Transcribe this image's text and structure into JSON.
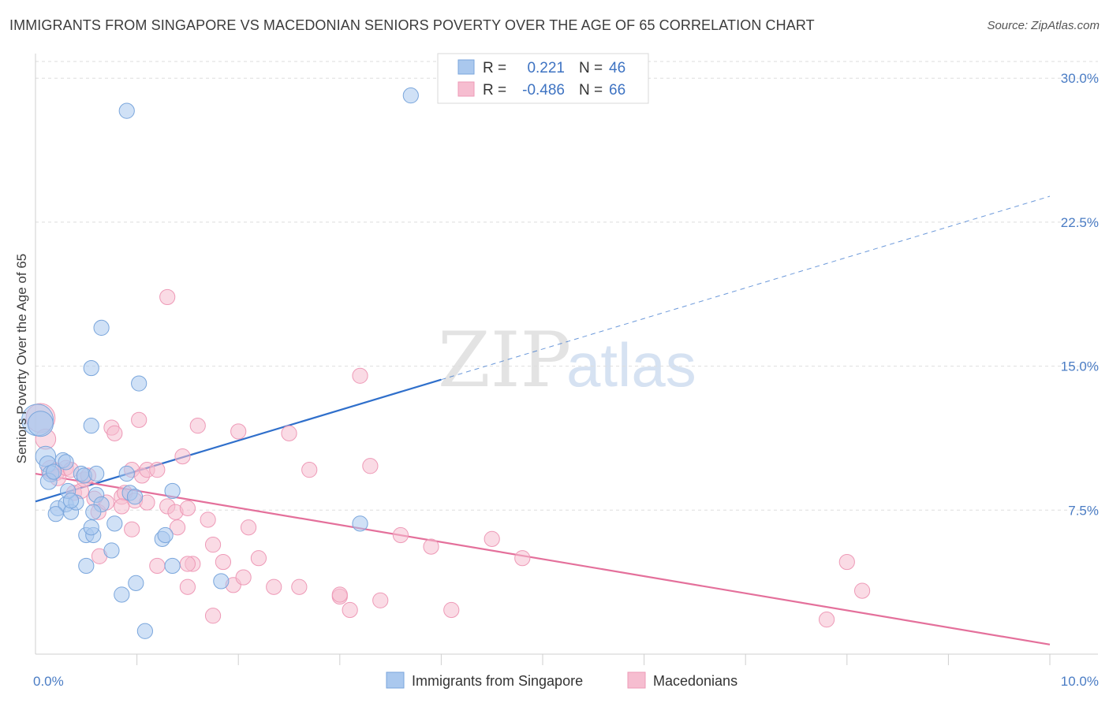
{
  "title": "IMMIGRANTS FROM SINGAPORE VS MACEDONIAN SENIORS POVERTY OVER THE AGE OF 65 CORRELATION CHART",
  "source": "Source: ZipAtlas.com",
  "watermark": {
    "zip": "ZIP",
    "atlas": "atlas"
  },
  "colors": {
    "blue_fill": "#aac8ee",
    "blue_stroke": "#7aa6dc",
    "blue_line": "#2f6fcb",
    "pink_fill": "#f6bdd0",
    "pink_stroke": "#ee9ab7",
    "pink_line": "#e4709b",
    "tick": "#4a7cc4"
  },
  "legend": {
    "rows": [
      {
        "r_label": "R =",
        "r_value": "0.221",
        "n_label": "N =",
        "n_value": "46",
        "series": "blue"
      },
      {
        "r_label": "R =",
        "r_value": "-0.486",
        "n_label": "N =",
        "n_value": "66",
        "series": "pink"
      }
    ]
  },
  "chart_data": {
    "type": "scatter",
    "title": "IMMIGRANTS FROM SINGAPORE VS MACEDONIAN SENIORS POVERTY OVER THE AGE OF 65 CORRELATION CHART",
    "xlabel": "",
    "ylabel": "Seniors Poverty Over the Age of 65",
    "xlim": [
      0,
      10
    ],
    "ylim": [
      0,
      31.2
    ],
    "x_tick_labels": [
      {
        "value": 0,
        "label": "0.0%"
      },
      {
        "value": 10,
        "label": "10.0%"
      }
    ],
    "y_tick_labels": [
      {
        "value": 7.5,
        "label": "7.5%"
      },
      {
        "value": 15,
        "label": "15.0%"
      },
      {
        "value": 22.5,
        "label": "22.5%"
      },
      {
        "value": 30,
        "label": "30.0%"
      }
    ],
    "x_minor_ticks": [
      1,
      2,
      3,
      4,
      5,
      6,
      7,
      8,
      9
    ],
    "grid": true,
    "series": [
      {
        "name": "Immigrants from Singapore",
        "color": "blue",
        "r": 0.221,
        "n": 46,
        "trend": {
          "x0": 0.0,
          "y0": 7.95,
          "x1": 4.0,
          "y1": 14.3,
          "dash_to_x": 10.0,
          "dash_to_y": 23.85
        },
        "points": [
          [
            0.02,
            12.2,
            2.5
          ],
          [
            0.05,
            12.0,
            2.0
          ],
          [
            0.1,
            10.3,
            1.6
          ],
          [
            0.12,
            9.9,
            1.3
          ],
          [
            0.15,
            9.4,
            1.3
          ],
          [
            0.13,
            9.0,
            1.3
          ],
          [
            0.18,
            9.5,
            1.2
          ],
          [
            0.27,
            10.1,
            1.2
          ],
          [
            0.22,
            7.6,
            1.2
          ],
          [
            0.3,
            7.8,
            1.2
          ],
          [
            0.35,
            7.4,
            1.2
          ],
          [
            0.4,
            7.9,
            1.2
          ],
          [
            0.32,
            8.5,
            1.2
          ],
          [
            0.45,
            9.4,
            1.2
          ],
          [
            0.48,
            9.3,
            1.2
          ],
          [
            0.6,
            9.4,
            1.2
          ],
          [
            0.6,
            8.3,
            1.2
          ],
          [
            0.65,
            7.8,
            1.2
          ],
          [
            0.57,
            7.4,
            1.2
          ],
          [
            0.55,
            11.9,
            1.2
          ],
          [
            0.65,
            17.0,
            1.2
          ],
          [
            0.55,
            14.9,
            1.2
          ],
          [
            0.5,
            6.2,
            1.2
          ],
          [
            0.57,
            6.2,
            1.2
          ],
          [
            0.55,
            6.6,
            1.2
          ],
          [
            0.75,
            5.4,
            1.2
          ],
          [
            0.78,
            6.8,
            1.2
          ],
          [
            0.93,
            8.4,
            1.2
          ],
          [
            0.98,
            8.2,
            1.2
          ],
          [
            0.9,
            9.4,
            1.2
          ],
          [
            1.02,
            14.1,
            1.2
          ],
          [
            0.5,
            4.6,
            1.2
          ],
          [
            0.85,
            3.1,
            1.2
          ],
          [
            0.99,
            3.7,
            1.2
          ],
          [
            1.08,
            1.2,
            1.2
          ],
          [
            1.25,
            6.0,
            1.2
          ],
          [
            1.28,
            6.2,
            1.2
          ],
          [
            1.35,
            4.6,
            1.2
          ],
          [
            1.35,
            8.5,
            1.2
          ],
          [
            1.83,
            3.8,
            1.2
          ],
          [
            3.2,
            6.8,
            1.2
          ],
          [
            0.9,
            28.3,
            1.2
          ],
          [
            3.7,
            29.1,
            1.2
          ],
          [
            0.35,
            8.0,
            1.2
          ],
          [
            0.2,
            7.3,
            1.2
          ],
          [
            0.3,
            10.0,
            1.2
          ]
        ]
      },
      {
        "name": "Macedonians",
        "color": "pink",
        "r": -0.486,
        "n": 66,
        "trend": {
          "x0": 0.0,
          "y0": 9.4,
          "x1": 10.0,
          "y1": 0.5
        },
        "points": [
          [
            0.05,
            12.3,
            2.3
          ],
          [
            0.1,
            11.2,
            1.6
          ],
          [
            0.15,
            9.6,
            1.5
          ],
          [
            0.2,
            9.5,
            1.4
          ],
          [
            0.22,
            9.2,
            1.3
          ],
          [
            0.3,
            9.7,
            1.2
          ],
          [
            0.35,
            9.6,
            1.2
          ],
          [
            0.38,
            8.4,
            1.2
          ],
          [
            0.45,
            8.5,
            1.2
          ],
          [
            0.48,
            9.1,
            1.2
          ],
          [
            0.52,
            9.3,
            1.2
          ],
          [
            0.58,
            8.1,
            1.2
          ],
          [
            0.62,
            7.4,
            1.2
          ],
          [
            0.7,
            7.9,
            1.2
          ],
          [
            0.75,
            11.8,
            1.2
          ],
          [
            0.78,
            11.5,
            1.2
          ],
          [
            0.85,
            8.2,
            1.2
          ],
          [
            0.88,
            8.4,
            1.2
          ],
          [
            0.95,
            9.6,
            1.2
          ],
          [
            0.98,
            8.0,
            1.2
          ],
          [
            1.05,
            9.3,
            1.2
          ],
          [
            1.02,
            12.2,
            1.2
          ],
          [
            1.1,
            9.6,
            1.2
          ],
          [
            1.2,
            9.6,
            1.2
          ],
          [
            1.1,
            7.9,
            1.2
          ],
          [
            1.3,
            7.7,
            1.2
          ],
          [
            1.38,
            7.4,
            1.2
          ],
          [
            1.4,
            6.6,
            1.2
          ],
          [
            1.45,
            10.3,
            1.2
          ],
          [
            1.3,
            18.6,
            1.2
          ],
          [
            1.5,
            7.6,
            1.2
          ],
          [
            1.6,
            11.9,
            1.2
          ],
          [
            1.7,
            7.0,
            1.2
          ],
          [
            1.75,
            2.0,
            1.2
          ],
          [
            1.75,
            5.7,
            1.2
          ],
          [
            1.85,
            4.8,
            1.2
          ],
          [
            1.95,
            3.6,
            1.2
          ],
          [
            2.05,
            4.0,
            1.2
          ],
          [
            2.0,
            11.6,
            1.2
          ],
          [
            2.1,
            6.6,
            1.2
          ],
          [
            2.2,
            5.0,
            1.2
          ],
          [
            2.5,
            11.5,
            1.2
          ],
          [
            2.6,
            3.5,
            1.2
          ],
          [
            2.7,
            9.6,
            1.2
          ],
          [
            3.0,
            3.0,
            1.2
          ],
          [
            3.1,
            2.3,
            1.2
          ],
          [
            3.2,
            14.5,
            1.2
          ],
          [
            3.3,
            9.8,
            1.2
          ],
          [
            3.4,
            2.8,
            1.2
          ],
          [
            3.6,
            6.2,
            1.2
          ],
          [
            3.9,
            5.6,
            1.2
          ],
          [
            4.1,
            2.3,
            1.2
          ],
          [
            4.5,
            6.0,
            1.2
          ],
          [
            4.8,
            5.0,
            1.2
          ],
          [
            0.63,
            5.1,
            1.2
          ],
          [
            0.95,
            6.5,
            1.2
          ],
          [
            1.2,
            4.6,
            1.2
          ],
          [
            1.55,
            4.7,
            1.2
          ],
          [
            1.5,
            4.7,
            1.2
          ],
          [
            1.5,
            3.5,
            1.2
          ],
          [
            2.35,
            3.5,
            1.2
          ],
          [
            3.0,
            3.1,
            1.2
          ],
          [
            8.0,
            4.8,
            1.2
          ],
          [
            8.15,
            3.3,
            1.2
          ],
          [
            7.8,
            1.8,
            1.2
          ],
          [
            0.85,
            7.7,
            1.2
          ]
        ]
      }
    ]
  },
  "bottom_legend": [
    {
      "label": "Immigrants from Singapore",
      "color": "blue"
    },
    {
      "label": "Macedonians",
      "color": "pink"
    }
  ]
}
